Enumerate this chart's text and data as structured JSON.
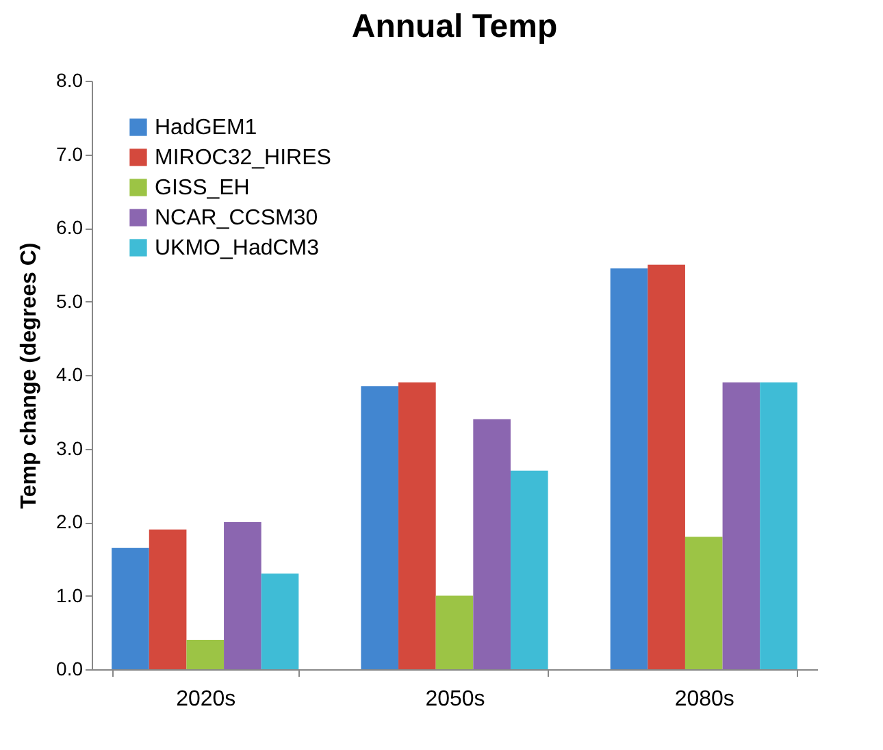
{
  "chart_data": {
    "type": "bar",
    "title": "Annual Temp",
    "ylabel": "Temp change (degrees C)",
    "categories": [
      "2020s",
      "2050s",
      "2080s"
    ],
    "series": [
      {
        "name": "HadGEM1",
        "color": "#4286d0",
        "values": [
          1.65,
          3.85,
          5.45
        ]
      },
      {
        "name": "MIROC32_HIRES",
        "color": "#d4493d",
        "values": [
          1.9,
          3.9,
          5.5
        ]
      },
      {
        "name": "GISS_EH",
        "color": "#9cc445",
        "values": [
          0.4,
          1.0,
          1.8
        ]
      },
      {
        "name": "NCAR_CCSM30",
        "color": "#8b66b0",
        "values": [
          2.0,
          3.4,
          3.9
        ]
      },
      {
        "name": "UKMO_HadCM3",
        "color": "#3fbcd6",
        "values": [
          1.3,
          2.7,
          3.9
        ]
      }
    ],
    "ylim": [
      0,
      8
    ],
    "yticks": [
      {
        "value": 0,
        "label": "0.0"
      },
      {
        "value": 1,
        "label": "1.0"
      },
      {
        "value": 2,
        "label": "2.0"
      },
      {
        "value": 3,
        "label": "3.0"
      },
      {
        "value": 4,
        "label": "4.0"
      },
      {
        "value": 5,
        "label": "5.0"
      },
      {
        "value": 6,
        "label": "6.0"
      },
      {
        "value": 7,
        "label": "7.0"
      },
      {
        "value": 8,
        "label": "8.0"
      }
    ],
    "grid": false,
    "legend": "top left"
  }
}
